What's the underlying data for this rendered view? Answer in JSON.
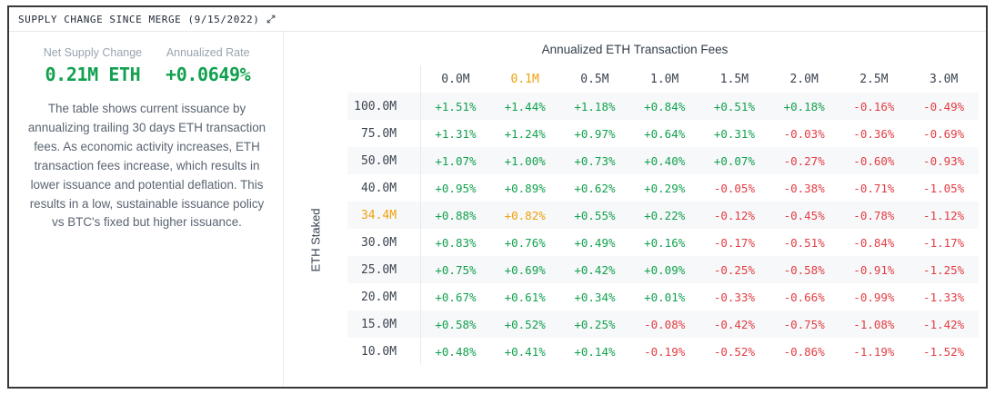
{
  "header": {
    "title": "SUPPLY CHANGE SINCE MERGE (9/15/2022)"
  },
  "stats": {
    "net_supply": {
      "label": "Net Supply Change",
      "value": "0.21M ETH"
    },
    "annualized_rate": {
      "label": "Annualized Rate",
      "value": "+0.0649%"
    }
  },
  "description": "The table shows current issuance by annualizing trailing 30 days ETH transaction fees. As economic activity increases, ETH transaction fees increase, which results in lower issuance and potential deflation. This results in a low, sustainable issuance policy vs BTC's fixed but higher issuance.",
  "chart_data": {
    "type": "heatmap",
    "title": "Annualized ETH Transaction Fees",
    "xlabel": "Annualized ETH Transaction Fees",
    "ylabel": "ETH Staked",
    "columns": [
      "0.0M",
      "0.1M",
      "0.5M",
      "1.0M",
      "1.5M",
      "2.0M",
      "2.5M",
      "3.0M"
    ],
    "highlighted_column": "0.1M",
    "highlighted_row": "34.4M",
    "rows": [
      {
        "label": "100.0M",
        "values": [
          "+1.51%",
          "+1.44%",
          "+1.18%",
          "+0.84%",
          "+0.51%",
          "+0.18%",
          "-0.16%",
          "-0.49%"
        ]
      },
      {
        "label": "75.0M",
        "values": [
          "+1.31%",
          "+1.24%",
          "+0.97%",
          "+0.64%",
          "+0.31%",
          "-0.03%",
          "-0.36%",
          "-0.69%"
        ]
      },
      {
        "label": "50.0M",
        "values": [
          "+1.07%",
          "+1.00%",
          "+0.73%",
          "+0.40%",
          "+0.07%",
          "-0.27%",
          "-0.60%",
          "-0.93%"
        ]
      },
      {
        "label": "40.0M",
        "values": [
          "+0.95%",
          "+0.89%",
          "+0.62%",
          "+0.29%",
          "-0.05%",
          "-0.38%",
          "-0.71%",
          "-1.05%"
        ]
      },
      {
        "label": "34.4M",
        "values": [
          "+0.88%",
          "+0.82%",
          "+0.55%",
          "+0.22%",
          "-0.12%",
          "-0.45%",
          "-0.78%",
          "-1.12%"
        ]
      },
      {
        "label": "30.0M",
        "values": [
          "+0.83%",
          "+0.76%",
          "+0.49%",
          "+0.16%",
          "-0.17%",
          "-0.51%",
          "-0.84%",
          "-1.17%"
        ]
      },
      {
        "label": "25.0M",
        "values": [
          "+0.75%",
          "+0.69%",
          "+0.42%",
          "+0.09%",
          "-0.25%",
          "-0.58%",
          "-0.91%",
          "-1.25%"
        ]
      },
      {
        "label": "20.0M",
        "values": [
          "+0.67%",
          "+0.61%",
          "+0.34%",
          "+0.01%",
          "-0.33%",
          "-0.66%",
          "-0.99%",
          "-1.33%"
        ]
      },
      {
        "label": "15.0M",
        "values": [
          "+0.58%",
          "+0.52%",
          "+0.25%",
          "-0.08%",
          "-0.42%",
          "-0.75%",
          "-1.08%",
          "-1.42%"
        ]
      },
      {
        "label": "10.0M",
        "values": [
          "+0.48%",
          "+0.41%",
          "+0.14%",
          "-0.19%",
          "-0.52%",
          "-0.86%",
          "-1.19%",
          "-1.52%"
        ]
      }
    ]
  },
  "colors": {
    "positive": "#12a150",
    "negative": "#e23d44",
    "highlight": "#f0a10c"
  }
}
